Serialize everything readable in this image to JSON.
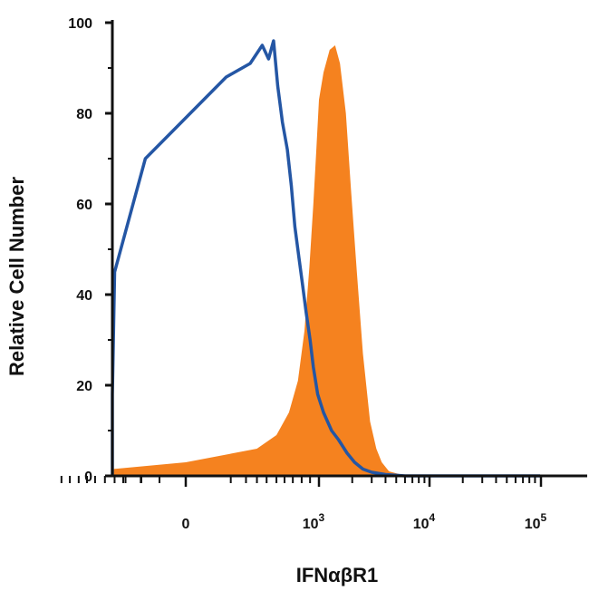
{
  "chart_data": {
    "type": "area",
    "xlabel": "IFNαβR1",
    "ylabel": "Relative Cell Number",
    "x_scale": "biexponential",
    "ylim": [
      0,
      100
    ],
    "y_ticks": [
      0,
      20,
      40,
      60,
      80,
      100
    ],
    "x_ticks": [
      {
        "base": "0",
        "exp": ""
      },
      {
        "base": "10",
        "exp": "3"
      },
      {
        "base": "10",
        "exp": "4"
      },
      {
        "base": "10",
        "exp": "5"
      }
    ],
    "grid": false,
    "legend": "none",
    "series": [
      {
        "style": "line",
        "color": "#2456a4",
        "points": [
          [
            -800,
            0
          ],
          [
            -500,
            0.5
          ],
          [
            -350,
            2
          ],
          [
            -250,
            6
          ],
          [
            -150,
            18
          ],
          [
            -80,
            45
          ],
          [
            -20,
            70
          ],
          [
            20,
            88
          ],
          [
            60,
            91
          ],
          [
            100,
            95
          ],
          [
            130,
            92
          ],
          [
            160,
            96
          ],
          [
            190,
            86
          ],
          [
            230,
            78
          ],
          [
            280,
            72
          ],
          [
            330,
            64
          ],
          [
            380,
            55
          ],
          [
            450,
            48
          ],
          [
            520,
            42
          ],
          [
            600,
            36
          ],
          [
            700,
            30
          ],
          [
            800,
            24
          ],
          [
            950,
            18
          ],
          [
            1100,
            14
          ],
          [
            1300,
            10
          ],
          [
            1500,
            8
          ],
          [
            1800,
            5
          ],
          [
            2100,
            3
          ],
          [
            2500,
            1.5
          ],
          [
            3000,
            0.8
          ],
          [
            4000,
            0.3
          ],
          [
            6000,
            0
          ],
          [
            100000,
            0
          ]
        ]
      },
      {
        "style": "fill",
        "color": "#f5821f",
        "points": [
          [
            -400,
            0
          ],
          [
            -250,
            0.3
          ],
          [
            -100,
            1.5
          ],
          [
            0,
            3
          ],
          [
            80,
            6
          ],
          [
            180,
            9
          ],
          [
            300,
            14
          ],
          [
            430,
            21
          ],
          [
            560,
            32
          ],
          [
            680,
            46
          ],
          [
            800,
            60
          ],
          [
            900,
            72
          ],
          [
            1000,
            83
          ],
          [
            1100,
            89
          ],
          [
            1250,
            94
          ],
          [
            1400,
            95
          ],
          [
            1550,
            91
          ],
          [
            1750,
            80
          ],
          [
            1950,
            63
          ],
          [
            2200,
            45
          ],
          [
            2500,
            27
          ],
          [
            2900,
            12
          ],
          [
            3300,
            6
          ],
          [
            3700,
            3
          ],
          [
            4300,
            1
          ],
          [
            5500,
            0.3
          ],
          [
            7000,
            0
          ]
        ]
      }
    ]
  }
}
